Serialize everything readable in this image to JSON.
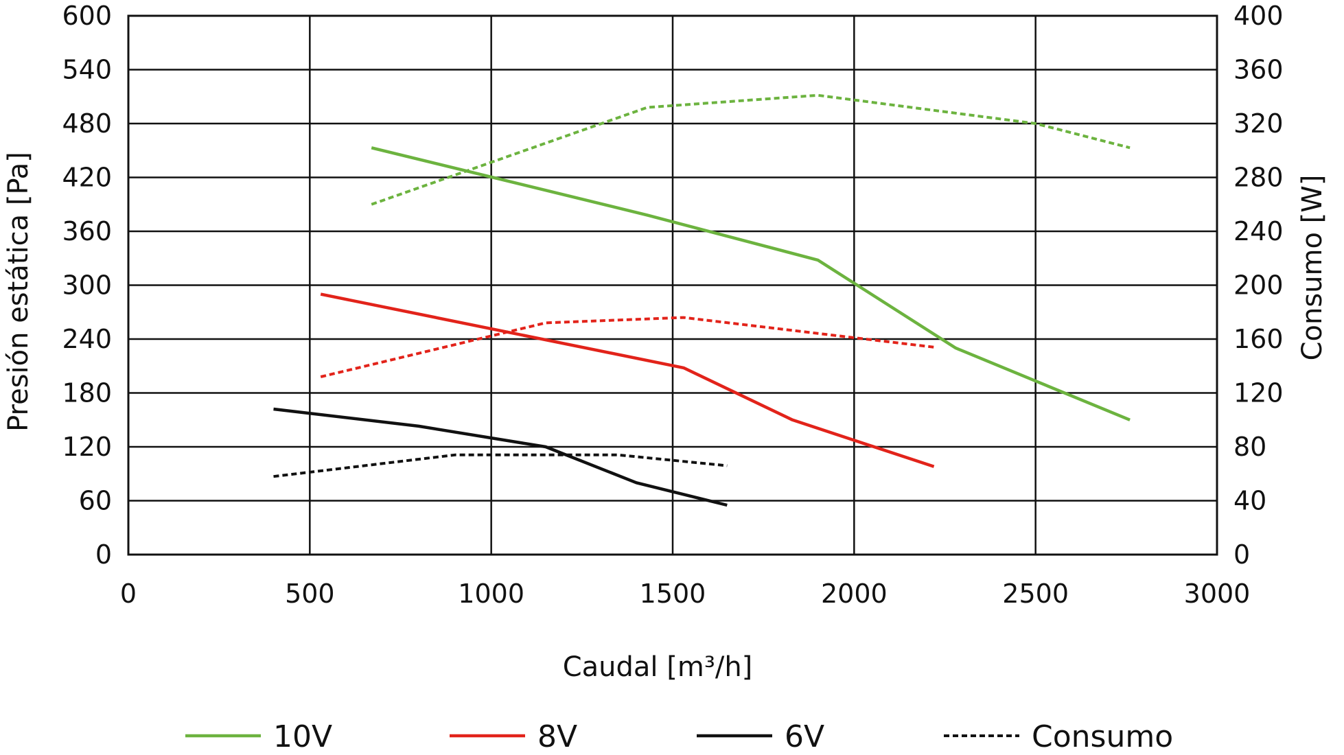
{
  "chart_data": {
    "type": "line",
    "xlabel": "Caudal [m³/h]",
    "ylabel": "Presión estática [Pa]",
    "y2label": "Consumo [W]",
    "xlim": [
      0,
      3000
    ],
    "ylim": [
      0,
      600
    ],
    "y2lim": [
      0,
      400
    ],
    "grid": true,
    "legend_position": "bottom",
    "xticks": [
      "0",
      "500",
      "1000",
      "1500",
      "2000",
      "2500",
      "3000"
    ],
    "yticks": [
      "0",
      "60",
      "120",
      "180",
      "240",
      "300",
      "360",
      "420",
      "480",
      "540",
      "600"
    ],
    "y2ticks": [
      "0",
      "40",
      "80",
      "120",
      "160",
      "200",
      "240",
      "280",
      "320",
      "360",
      "400"
    ],
    "series": [
      {
        "name": "10V",
        "axis": "left",
        "style": "solid",
        "color": "#6cb33f",
        "x": [
          670,
          1430,
          1900,
          2280,
          2760
        ],
        "y": [
          453,
          378,
          328,
          230,
          150
        ]
      },
      {
        "name": "8V",
        "axis": "left",
        "style": "solid",
        "color": "#e2231a",
        "x": [
          530,
          1530,
          1830,
          2220
        ],
        "y": [
          290,
          208,
          150,
          98
        ]
      },
      {
        "name": "6V",
        "axis": "left",
        "style": "solid",
        "color": "#111111",
        "x": [
          400,
          800,
          1150,
          1400,
          1650
        ],
        "y": [
          162,
          143,
          120,
          80,
          55
        ]
      },
      {
        "axis": "right",
        "style": "dashed",
        "color": "#6cb33f",
        "x": [
          670,
          1430,
          1900,
          2500,
          2760
        ],
        "y": [
          260,
          332,
          341,
          320,
          302
        ]
      },
      {
        "axis": "right",
        "style": "dashed",
        "color": "#e2231a",
        "x": [
          530,
          1150,
          1530,
          2220
        ],
        "y": [
          132,
          172,
          176,
          154
        ]
      },
      {
        "axis": "right",
        "style": "dashed",
        "color": "#111111",
        "x": [
          400,
          900,
          1350,
          1650
        ],
        "y": [
          58,
          74,
          74,
          66
        ]
      }
    ],
    "legend": [
      {
        "label": "10V",
        "color": "#6cb33f",
        "style": "solid"
      },
      {
        "label": "8V",
        "color": "#e2231a",
        "style": "solid"
      },
      {
        "label": "6V",
        "color": "#111111",
        "style": "solid"
      },
      {
        "label": "Consumo",
        "color": "#111111",
        "style": "dashed"
      }
    ]
  }
}
